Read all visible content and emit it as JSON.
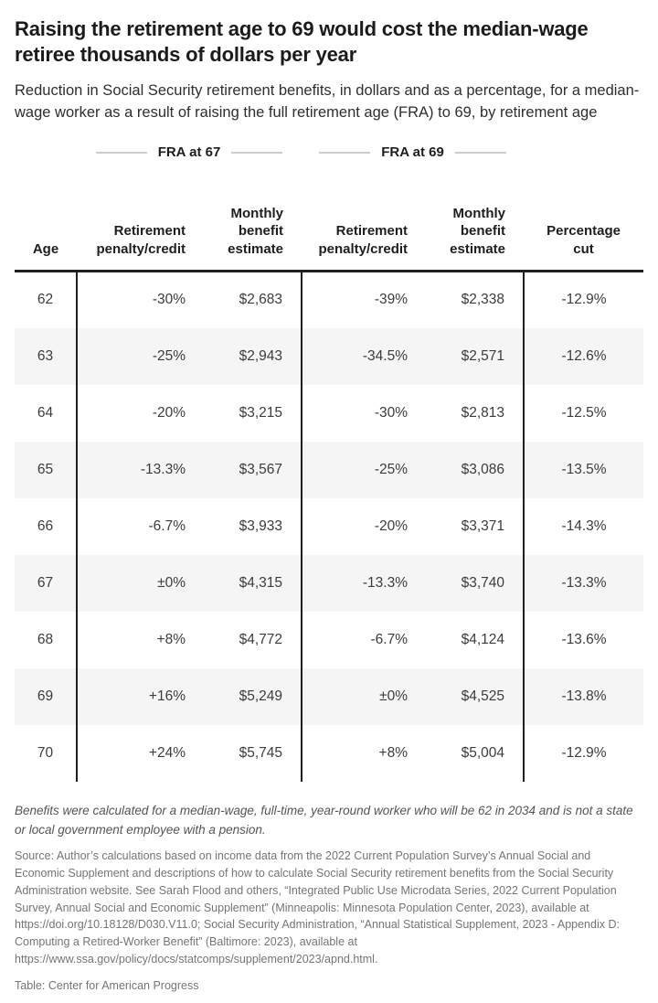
{
  "chart_data": {
    "type": "table",
    "title": "Raising the retirement age to 69 would cost the median-wage retiree thousands of dollars per year",
    "subtitle": "Reduction in Social Security retirement benefits, in dollars and as a percentage, for a median-wage worker as a result of raising the full retirement age (FRA) to 69, by retirement age",
    "group_headers": [
      "FRA at 67",
      "FRA at 69"
    ],
    "columns": [
      "Age",
      "Retirement penalty/credit",
      "Monthly benefit estimate",
      "Retirement penalty/credit",
      "Monthly benefit estimate",
      "Percentage cut"
    ],
    "rows": [
      {
        "age": "62",
        "fra67_penalty": "-30%",
        "fra67_benefit": "$2,683",
        "fra69_penalty": "-39%",
        "fra69_benefit": "$2,338",
        "pct_cut": "-12.9%"
      },
      {
        "age": "63",
        "fra67_penalty": "-25%",
        "fra67_benefit": "$2,943",
        "fra69_penalty": "-34.5%",
        "fra69_benefit": "$2,571",
        "pct_cut": "-12.6%"
      },
      {
        "age": "64",
        "fra67_penalty": "-20%",
        "fra67_benefit": "$3,215",
        "fra69_penalty": "-30%",
        "fra69_benefit": "$2,813",
        "pct_cut": "-12.5%"
      },
      {
        "age": "65",
        "fra67_penalty": "-13.3%",
        "fra67_benefit": "$3,567",
        "fra69_penalty": "-25%",
        "fra69_benefit": "$3,086",
        "pct_cut": "-13.5%"
      },
      {
        "age": "66",
        "fra67_penalty": "-6.7%",
        "fra67_benefit": "$3,933",
        "fra69_penalty": "-20%",
        "fra69_benefit": "$3,371",
        "pct_cut": "-14.3%"
      },
      {
        "age": "67",
        "fra67_penalty": "±0%",
        "fra67_benefit": "$4,315",
        "fra69_penalty": "-13.3%",
        "fra69_benefit": "$3,740",
        "pct_cut": "-13.3%"
      },
      {
        "age": "68",
        "fra67_penalty": "+8%",
        "fra67_benefit": "$4,772",
        "fra69_penalty": "-6.7%",
        "fra69_benefit": "$4,124",
        "pct_cut": "-13.6%"
      },
      {
        "age": "69",
        "fra67_penalty": "+16%",
        "fra67_benefit": "$5,249",
        "fra69_penalty": "±0%",
        "fra69_benefit": "$4,525",
        "pct_cut": "-13.8%"
      },
      {
        "age": "70",
        "fra67_penalty": "+24%",
        "fra67_benefit": "$5,745",
        "fra69_penalty": "+8%",
        "fra69_benefit": "$5,004",
        "pct_cut": "-12.9%"
      }
    ],
    "layout_hints": {
      "alternating_row_shading": true,
      "shaded_ages": [
        "63",
        "65",
        "67",
        "69"
      ],
      "vertical_dividers_after": [
        "Age",
        "FRA at 67 group",
        "FRA at 69 group"
      ]
    }
  },
  "footer": {
    "note": "Benefits were calculated for a median-wage, full-time, year-round worker who will be 62 in 2034 and is not a state or local government employee with a pension.",
    "source": "Source: Author’s calculations based on income data from the 2022 Current Population Survey’s Annual Social and Economic Supplement and descriptions of how to calculate Social Security retirement benefits from the Social Security Administration website. See Sarah Flood and others, “Integrated Public Use Microdata Series, 2022 Current Population Survey, Annual Social and Economic Supplement” (Minneapolis: Minnesota Population Center, 2023), available at https://doi.org/10.18128/D030.V11.0; Social Security Administration, “Annual Statistical Supplement, 2023 - Appendix D: Computing a Retired-Worker Benefit” (Baltimore: 2023), available at https://www.ssa.gov/policy/docs/statcomps/supplement/2023/apnd.html.",
    "credit": "Table: Center for American Progress"
  },
  "colors": {
    "text_dark": "#1b1b1b",
    "cell_text": "#3c3c3c",
    "border_dark": "#1f1f1f",
    "row_shade": "#f5f5f5",
    "rule_gray": "#cccccc",
    "note_gray": "#555555",
    "source_gray": "#757575"
  }
}
